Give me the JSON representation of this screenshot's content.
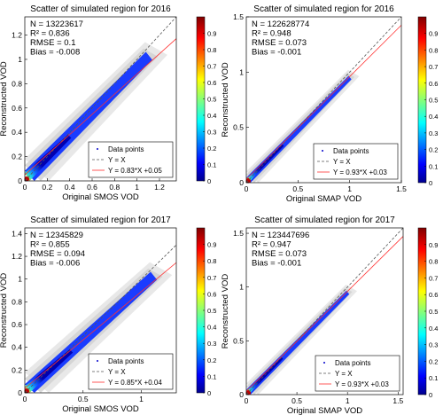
{
  "figure": {
    "domain": "Chart"
  },
  "chart_data": [
    {
      "type": "scatter",
      "title": "Scatter of simulated region for 2016",
      "xlabel": "Original SMOS VOD",
      "ylabel": "Reconstructed VOD",
      "xlim": [
        0,
        1.35
      ],
      "ylim": [
        0,
        1.35
      ],
      "xticks": [
        0,
        0.2,
        0.4,
        0.6,
        0.8,
        1,
        1.2
      ],
      "yticks": [
        0,
        0.2,
        0.4,
        0.6,
        0.8,
        1,
        1.2
      ],
      "stats": [
        "N = 13223617",
        "R² = 0.836",
        "RMSE = 0.1",
        "Bias = -0.008"
      ],
      "legend_position": "bottom-right",
      "legend": [
        "Data points",
        "Y = X",
        "Y = 0.83*X +0.05"
      ],
      "fit": {
        "slope": 0.83,
        "intercept": 0.05
      },
      "density": {
        "type": "heatmap",
        "colorbar_range": [
          0,
          1
        ],
        "colorbar_ticks": [
          0,
          0.1,
          0.2,
          0.3,
          0.4,
          0.5,
          0.6,
          0.7,
          0.8,
          0.9
        ]
      },
      "cloud_extent": {
        "x": [
          0,
          1.1
        ],
        "y": [
          0,
          1.05
        ]
      }
    },
    {
      "type": "scatter",
      "title": "Scatter of simulated region for 2016",
      "xlabel": "Original SMAP VOD",
      "ylabel": "Reconstructed VOD",
      "xlim": [
        0,
        1.5
      ],
      "ylim": [
        0,
        1.5
      ],
      "xticks": [
        0,
        0.5,
        1,
        1.5
      ],
      "yticks": [
        0,
        0.5,
        1,
        1.5
      ],
      "stats": [
        "N = 122628774",
        "R² = 0.948",
        "RMSE = 0.073",
        "Bias = -0.001"
      ],
      "legend_position": "bottom-right",
      "legend": [
        "Data points",
        "Y = X",
        "Y = 0.93*X +0.03"
      ],
      "fit": {
        "slope": 0.93,
        "intercept": 0.03
      },
      "density": {
        "type": "heatmap",
        "colorbar_range": [
          0,
          1
        ],
        "colorbar_ticks": [
          0,
          0.1,
          0.2,
          0.3,
          0.4,
          0.5,
          0.6,
          0.7,
          0.8,
          0.9
        ]
      },
      "cloud_extent": {
        "x": [
          0,
          1.0
        ],
        "y": [
          0,
          0.97
        ]
      }
    },
    {
      "type": "scatter",
      "title": "Scatter of simulated region for 2017",
      "xlabel": "Original SMOS VOD",
      "ylabel": "Reconstructed VOD",
      "xlim": [
        0,
        1.3
      ],
      "ylim": [
        0,
        1.45
      ],
      "xticks": [
        0,
        0.5,
        1
      ],
      "yticks": [
        0,
        0.2,
        0.4,
        0.6,
        0.8,
        1,
        1.2,
        1.4
      ],
      "stats": [
        "N = 12345829",
        "R² = 0.855",
        "RMSE = 0.094",
        "Bias = -0.006"
      ],
      "legend_position": "bottom-right",
      "legend": [
        "Data points",
        "Y = X",
        "Y = 0.85*X +0.04"
      ],
      "fit": {
        "slope": 0.85,
        "intercept": 0.04
      },
      "density": {
        "type": "heatmap",
        "colorbar_range": [
          0,
          1
        ],
        "colorbar_ticks": [
          0,
          0.1,
          0.2,
          0.3,
          0.4,
          0.5,
          0.6,
          0.7,
          0.8,
          0.9
        ]
      },
      "cloud_extent": {
        "x": [
          0,
          1.1
        ],
        "y": [
          0,
          1.05
        ]
      }
    },
    {
      "type": "scatter",
      "title": "Scatter of simulated region for 2017",
      "xlabel": "Original SMAP VOD",
      "ylabel": "Reconstructed VOD",
      "xlim": [
        0,
        1.55
      ],
      "ylim": [
        0,
        1.55
      ],
      "xticks": [
        0,
        0.5,
        1,
        1.5
      ],
      "yticks": [
        0,
        0.5,
        1,
        1.5
      ],
      "stats": [
        "N = 123447696",
        "R² = 0.947",
        "RMSE = 0.073",
        "Bias = -0.001"
      ],
      "legend_position": "bottom-right",
      "legend": [
        "Data points",
        "Y = X",
        "Y = 0.93*X +0.03"
      ],
      "fit": {
        "slope": 0.93,
        "intercept": 0.03
      },
      "density": {
        "type": "heatmap",
        "colorbar_range": [
          0,
          1
        ],
        "colorbar_ticks": [
          0,
          0.1,
          0.2,
          0.3,
          0.4,
          0.5,
          0.6,
          0.7,
          0.8,
          0.9
        ]
      },
      "cloud_extent": {
        "x": [
          0,
          1.0
        ],
        "y": [
          0,
          0.97
        ]
      }
    }
  ]
}
